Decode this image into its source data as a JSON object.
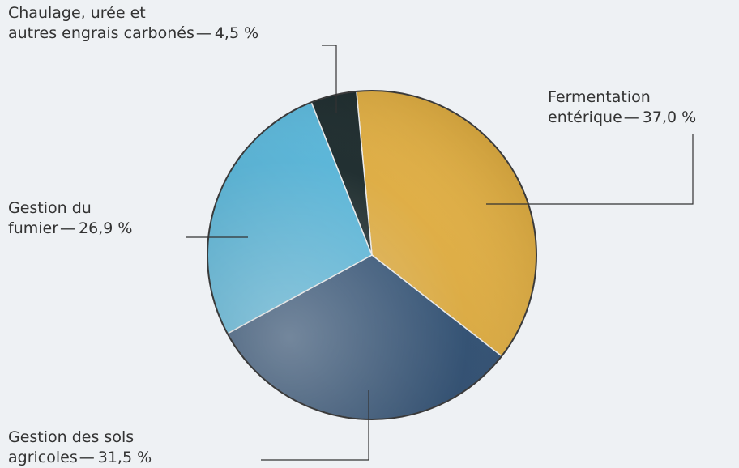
{
  "chart_data": {
    "type": "pie",
    "categories": [
      "Fermentation\nentérique",
      "Gestion des sols\nagricoles",
      "Gestion du\nfumier",
      "Chaulage, urée et\nautres engrais carbonés"
    ],
    "values": [
      37.0,
      31.5,
      26.9,
      4.5
    ],
    "value_labels": [
      "37,0 %",
      "31,5 %",
      "26,9 %",
      "4,5 %"
    ],
    "separator": "—",
    "colors": [
      "#efb842",
      "#2f5279",
      "#5cc3ea",
      "#18282a"
    ]
  }
}
